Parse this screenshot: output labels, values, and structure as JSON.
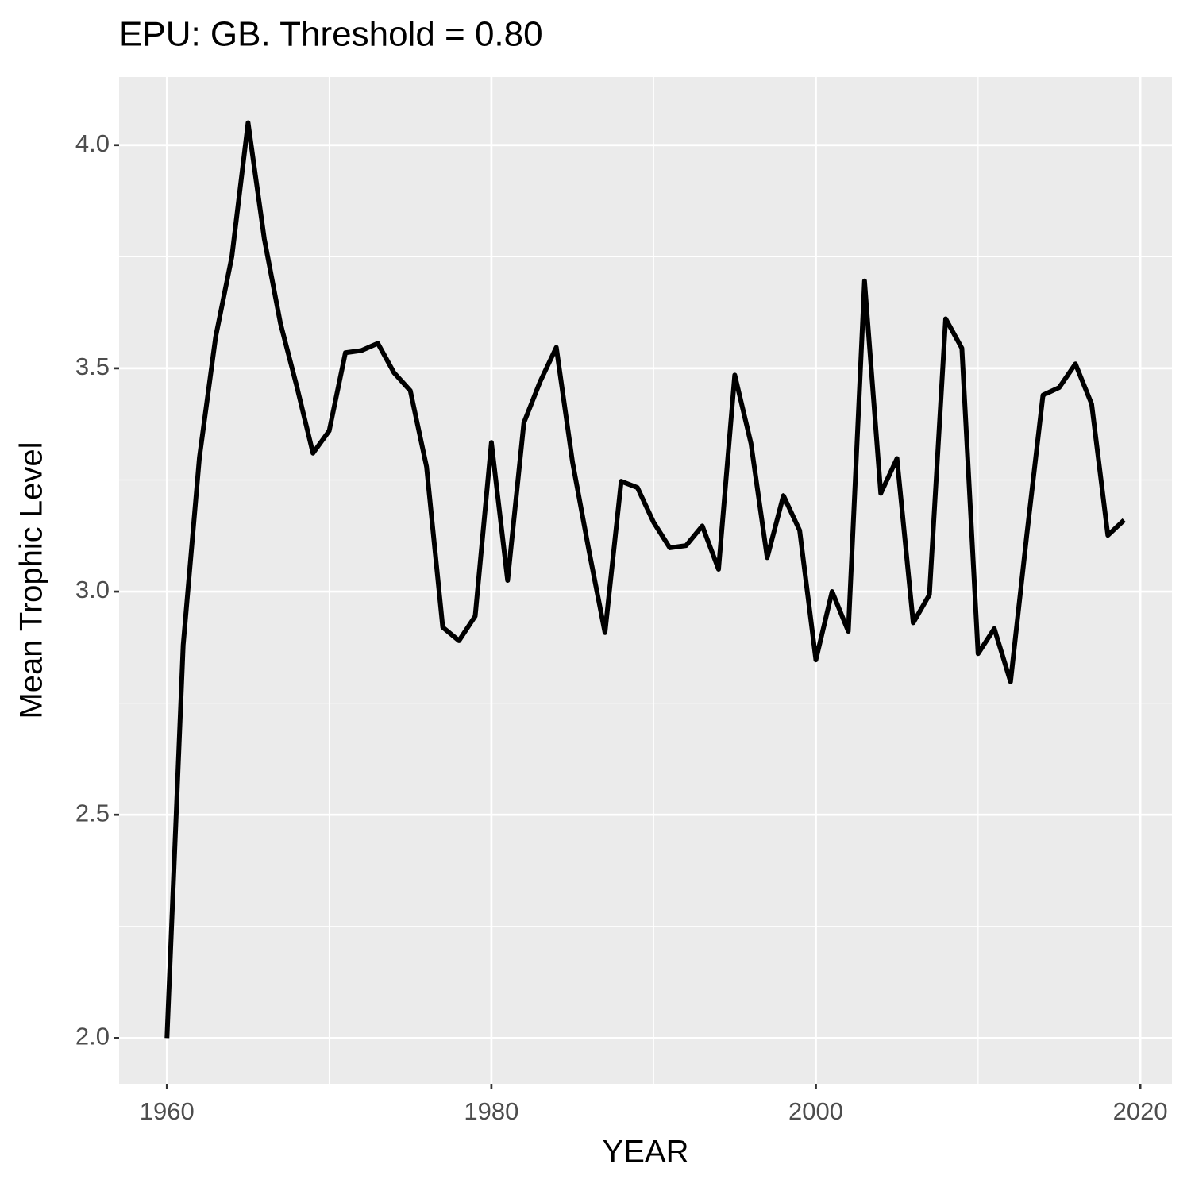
{
  "chart_data": {
    "type": "line",
    "title": "EPU: GB. Threshold = 0.80",
    "x_label": "YEAR",
    "y_label": "Mean Trophic Level",
    "x": [
      1960,
      1961,
      1962,
      1963,
      1964,
      1965,
      1966,
      1967,
      1968,
      1969,
      1970,
      1971,
      1972,
      1973,
      1974,
      1975,
      1976,
      1977,
      1978,
      1979,
      1980,
      1981,
      1982,
      1983,
      1984,
      1985,
      1986,
      1987,
      1988,
      1989,
      1990,
      1991,
      1992,
      1993,
      1994,
      1995,
      1996,
      1997,
      1998,
      1999,
      2000,
      2001,
      2002,
      2003,
      2004,
      2005,
      2006,
      2007,
      2008,
      2009,
      2010,
      2011,
      2012,
      2013,
      2014,
      2015,
      2016,
      2017,
      2018,
      2019
    ],
    "values": [
      2.0,
      2.88,
      3.3,
      3.57,
      3.75,
      4.05,
      3.79,
      3.6,
      3.46,
      3.31,
      3.36,
      3.535,
      3.54,
      3.556,
      3.49,
      3.45,
      3.28,
      2.92,
      2.89,
      2.945,
      3.334,
      3.025,
      3.378,
      3.47,
      3.547,
      3.29,
      3.094,
      2.908,
      3.247,
      3.233,
      3.155,
      3.098,
      3.103,
      3.147,
      3.05,
      3.485,
      3.332,
      3.076,
      3.215,
      3.137,
      2.847,
      3.0,
      2.911,
      3.696,
      3.22,
      3.298,
      2.93,
      2.993,
      3.611,
      3.545,
      2.861,
      2.917,
      2.798,
      3.126,
      3.44,
      3.457,
      3.51,
      3.42,
      3.126,
      3.16
    ],
    "color": "#000000",
    "xlim": [
      1957.05,
      2021.95
    ],
    "xticks": [
      1960,
      1980,
      2000,
      2020
    ],
    "xminor_ticks": [
      1970,
      1990,
      2010
    ],
    "ylim": [
      1.8975,
      4.1525
    ],
    "yticks": [
      {
        "value": 2,
        "label": "2.0"
      },
      2.5,
      {
        "value": 3,
        "label": "3.0"
      },
      3.5,
      {
        "value": 4,
        "label": "4.0"
      }
    ],
    "yminor_ticks": [
      2.25,
      2.75,
      3.25,
      3.75
    ],
    "grid": true
  }
}
